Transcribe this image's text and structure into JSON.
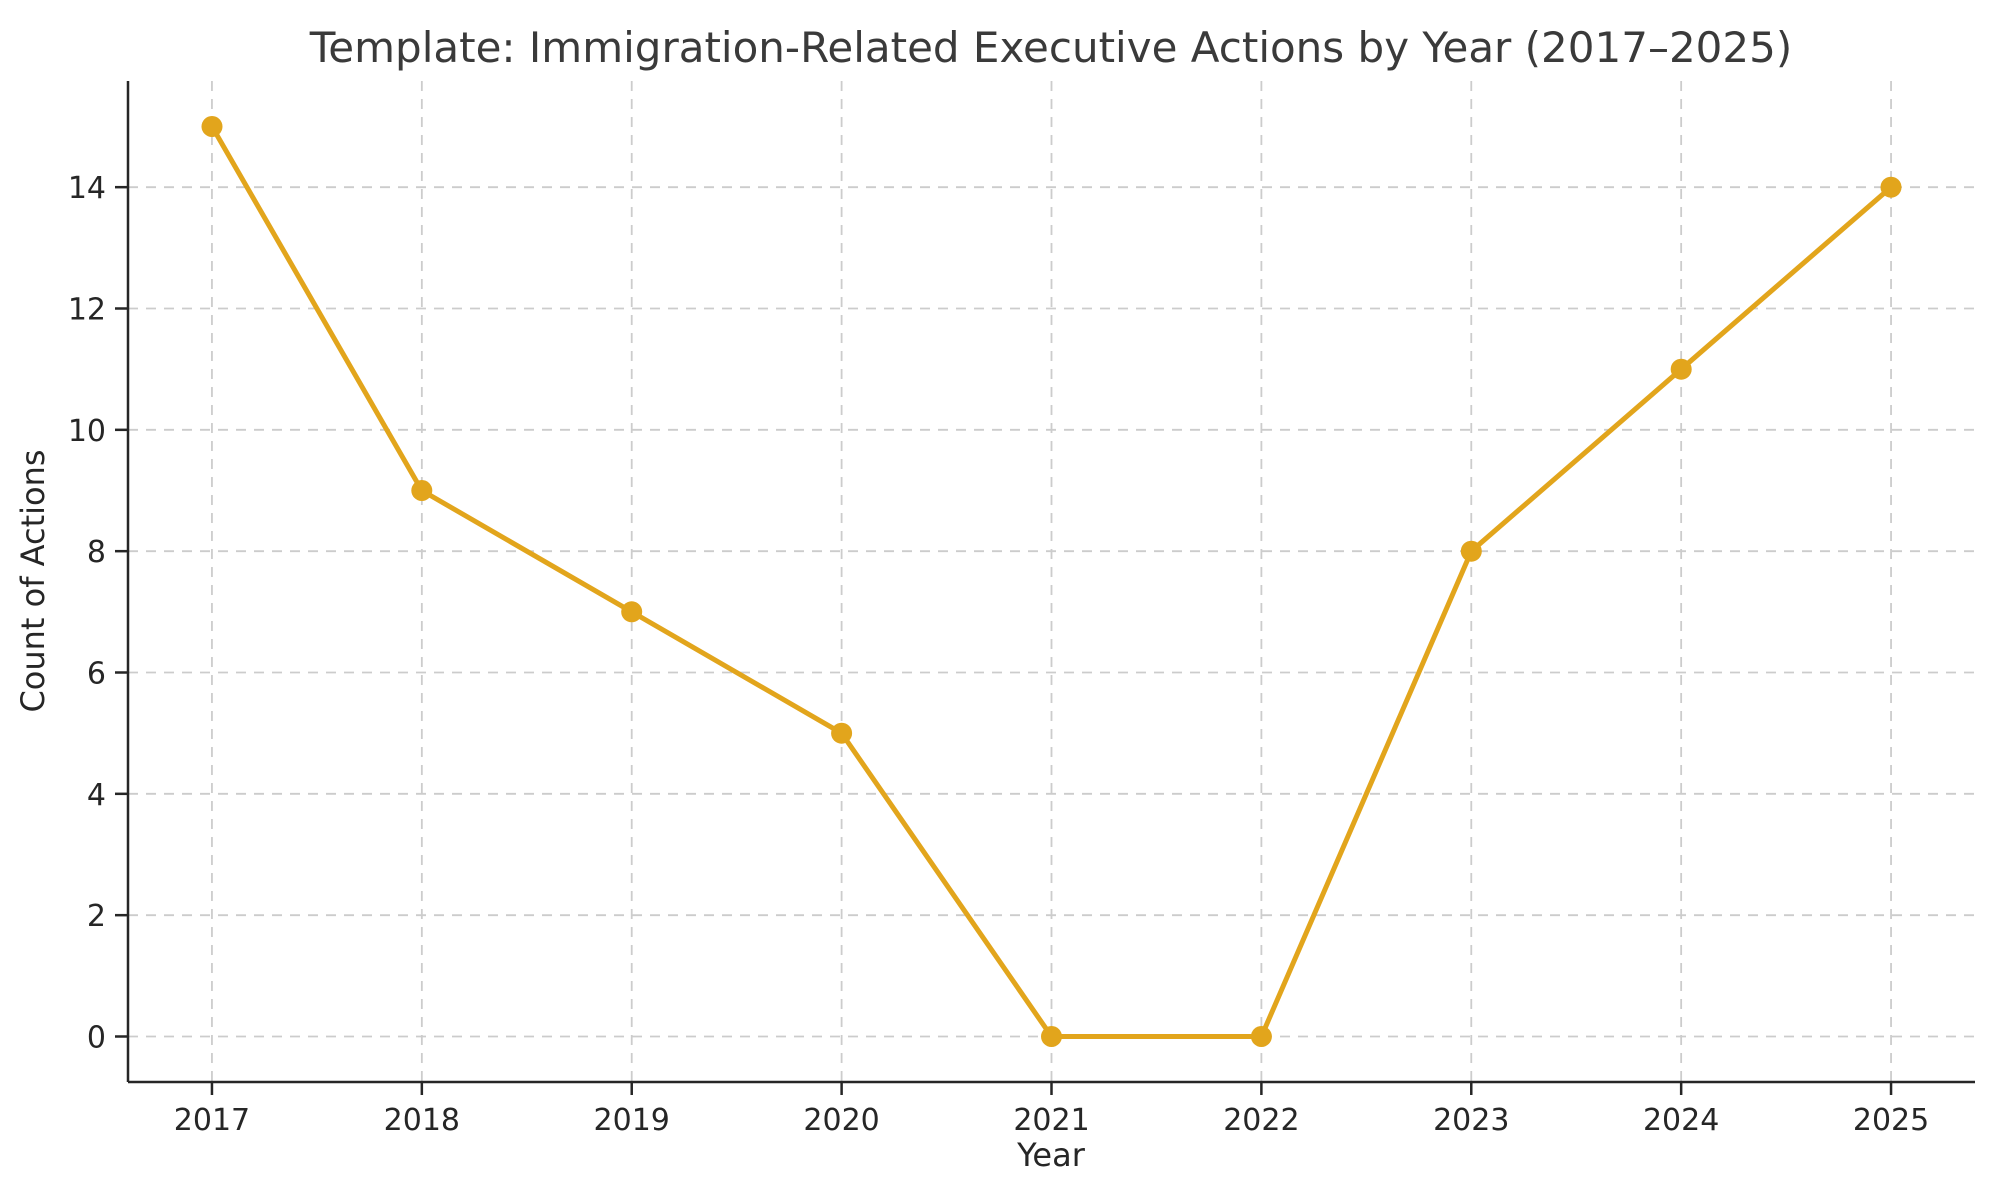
{
  "figure": {
    "title": "Template: Immigration-Related Executive Actions by Year (2017–2025)",
    "xlabel": "Year",
    "ylabel": "Count of Actions"
  },
  "colors": {
    "background": "#FFFFFF",
    "line": "#E2A51C",
    "marker": "#E2A51C",
    "grid": "#CCCCCC",
    "spine": "#262626",
    "tick_text": "#262626",
    "title_text": "#3A3A3A"
  },
  "chart_data": {
    "type": "line",
    "title": "Template: Immigration-Related Executive Actions by Year (2017–2025)",
    "xlabel": "Year",
    "ylabel": "Count of Actions",
    "x": [
      2017,
      2018,
      2019,
      2020,
      2021,
      2022,
      2023,
      2024,
      2025
    ],
    "series": [
      {
        "name": "Count of Actions",
        "values": [
          15,
          9,
          7,
          5,
          0,
          0,
          8,
          11,
          14
        ],
        "color": "#E2A51C",
        "marker": "circle",
        "line_style": "solid"
      }
    ],
    "xticks": [
      2017,
      2018,
      2019,
      2020,
      2021,
      2022,
      2023,
      2024,
      2025
    ],
    "yticks": [
      0,
      2,
      4,
      6,
      8,
      10,
      12,
      14
    ],
    "xlim": [
      2016.6,
      2025.4
    ],
    "ylim": [
      -0.75,
      15.75
    ],
    "grid": "on",
    "grid_style": "dashed",
    "legend": "none"
  }
}
